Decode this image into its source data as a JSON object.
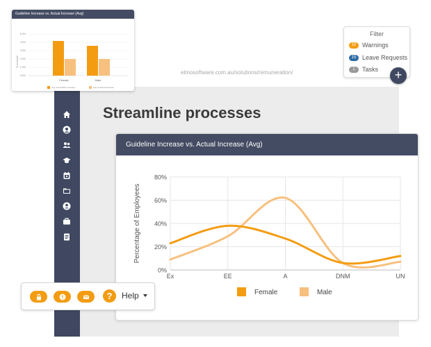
{
  "url": "elmosoftware.com.au/solutions/remuneration/",
  "page_title": "Streamline processes",
  "mini_chart": {
    "title": "Guideline Increase vs. Actual Increase (Avg)",
    "ylabel": "% Increase",
    "yticks": [
      "5.0%",
      "4.0%",
      "3.0%",
      "2.0%",
      "1.0%",
      "0.0%"
    ],
    "categories": [
      "Female",
      "Male"
    ],
    "legend": [
      "Avg of Guideline Increase",
      "Avg of Actual Increase"
    ]
  },
  "filter": {
    "title": "Filter",
    "items": [
      {
        "count": "10",
        "label": "Warnings",
        "color": "#f39c12"
      },
      {
        "count": "15",
        "label": "Leave Requests",
        "color": "#2e6da4"
      },
      {
        "count": "1",
        "label": "Tasks",
        "color": "#999999"
      }
    ],
    "add_icon": "plus-icon"
  },
  "sidebar": {
    "icons": [
      "home-icon",
      "user-icon",
      "users-icon",
      "graduation-cap-icon",
      "calendar-icon",
      "folder-icon",
      "user-circle-icon",
      "briefcase-icon",
      "clipboard-icon"
    ]
  },
  "chart_card": {
    "title": "Guideline Increase vs. Actual Increase (Avg)"
  },
  "chart_data": {
    "type": "line",
    "title": "",
    "xlabel": "",
    "ylabel": "Percentage of Employees",
    "categories": [
      "Ex",
      "EE",
      "A",
      "DNM",
      "UN"
    ],
    "yticks": [
      "80%",
      "60%",
      "40%",
      "20%",
      "0%"
    ],
    "ylim": [
      0,
      80
    ],
    "grid": true,
    "legend_position": "bottom",
    "series": [
      {
        "name": "Female",
        "color": "#f39c12",
        "values": [
          23,
          38,
          27,
          6,
          12
        ]
      },
      {
        "name": "Male",
        "color": "#f7c07e",
        "values": [
          9,
          29,
          62,
          6,
          7
        ]
      }
    ]
  },
  "toolbar": {
    "icons": [
      "lock-icon",
      "alert-icon",
      "mail-icon",
      "question-icon"
    ],
    "help_label": "Help",
    "accent": "#f39c12"
  }
}
